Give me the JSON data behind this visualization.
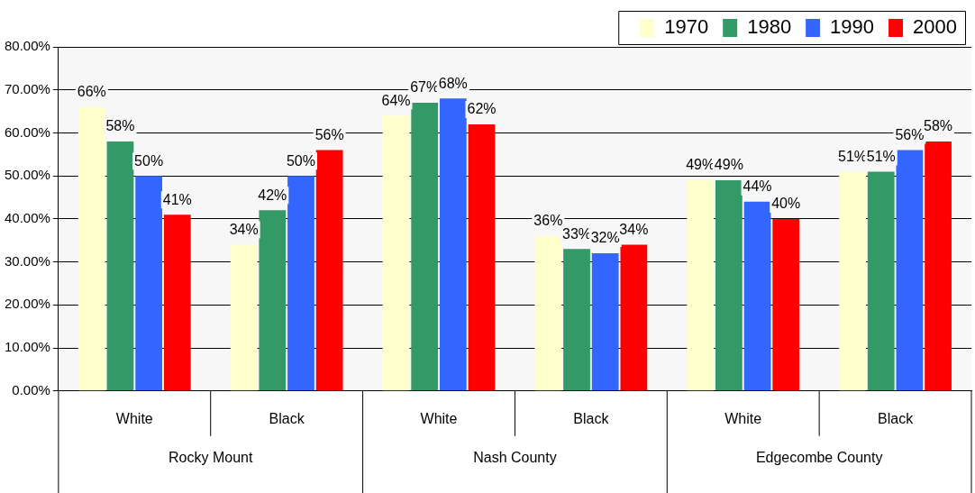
{
  "chart_data": {
    "type": "bar",
    "categories": [
      "White",
      "Black",
      "White",
      "Black",
      "White",
      "Black"
    ],
    "annotations": [
      "Rocky Mount",
      "Nash County",
      "Edgecombe County"
    ],
    "series": [
      {
        "name": "1970",
        "color": "#ffffcc",
        "values": [
          66,
          34,
          64,
          36,
          49,
          51
        ],
        "value_labels": [
          "66%",
          "34%",
          "64%",
          "36%",
          "49%",
          "51%"
        ]
      },
      {
        "name": "1980",
        "color": "#339966",
        "values": [
          58,
          42,
          67,
          33,
          49,
          51
        ],
        "value_labels": [
          "58%",
          "42%",
          "67%",
          "33%",
          "49%",
          "51%"
        ]
      },
      {
        "name": "1990",
        "color": "#3366ff",
        "values": [
          50,
          50,
          68,
          32,
          44,
          56
        ],
        "value_labels": [
          "50%",
          "50%",
          "68%",
          "32%",
          "44%",
          "56%"
        ]
      },
      {
        "name": "2000",
        "color": "#ff0000",
        "values": [
          41,
          56,
          62,
          34,
          40,
          58
        ],
        "value_labels": [
          "41%",
          "56%",
          "62%",
          "34%",
          "40%",
          "58%"
        ]
      }
    ],
    "ylim": [
      0,
      80
    ],
    "yticks": [
      {
        "value": 0,
        "label": "0.00%"
      },
      {
        "value": 10,
        "label": "10.00%"
      },
      {
        "value": 20,
        "label": "20.00%"
      },
      {
        "value": 30,
        "label": "30.00%"
      },
      {
        "value": 40,
        "label": "40.00%"
      },
      {
        "value": 50,
        "label": "50.00%"
      },
      {
        "value": 60,
        "label": "60.00%"
      },
      {
        "value": 70,
        "label": "70.00%"
      },
      {
        "value": 80,
        "label": "80.00%"
      }
    ],
    "grid": "y",
    "legend": "top right"
  }
}
